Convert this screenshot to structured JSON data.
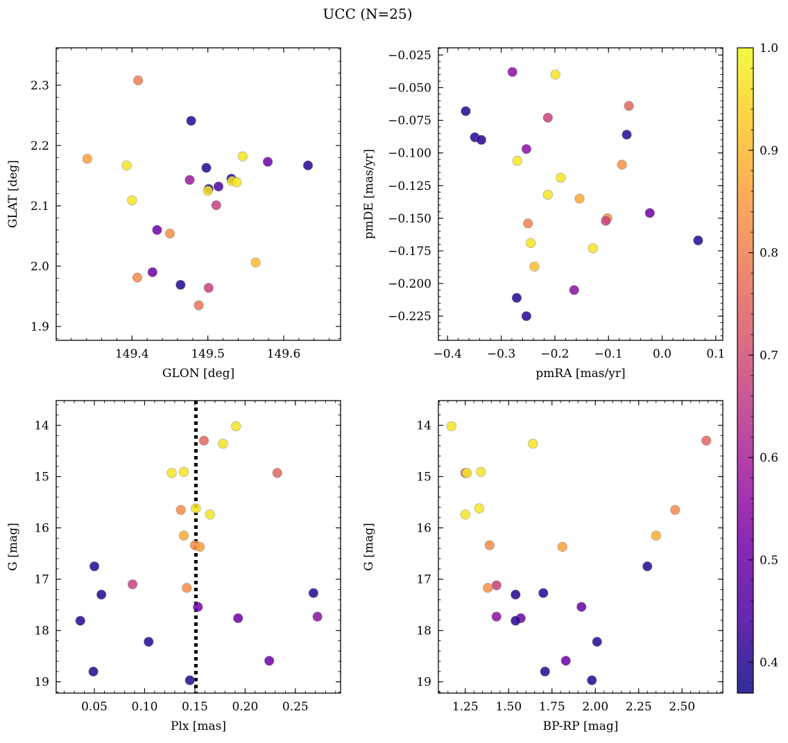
{
  "figure": {
    "title": "UCC (N=25)"
  },
  "colormap": {
    "name": "plasma",
    "alpha": 0.85,
    "min": 0.37,
    "max": 1.0,
    "tick_labels": [
      "0.4",
      "0.5",
      "0.6",
      "0.7",
      "0.8",
      "0.9",
      "1.0"
    ],
    "tick_values": [
      0.4,
      0.5,
      0.6,
      0.7,
      0.8,
      0.9,
      1.0
    ],
    "stops": [
      "#0d0887",
      "#46039f",
      "#7201a8",
      "#9c179e",
      "#bd3786",
      "#d8576b",
      "#ed7953",
      "#fb9f3a",
      "#fdca26",
      "#f0f921"
    ]
  },
  "chart_data": [
    {
      "type": "scatter",
      "name": "GLON vs GLAT",
      "xlabel": "GLON [deg]",
      "ylabel": "GLAT [deg]",
      "xlim": [
        149.3,
        149.675
      ],
      "ylim": [
        1.877,
        2.362
      ],
      "x_ticks": [
        149.4,
        149.5,
        149.6
      ],
      "x_tick_labels": [
        "149.4",
        "149.5",
        "149.6"
      ],
      "y_ticks": [
        1.9,
        2.0,
        2.1,
        2.2,
        2.3
      ],
      "y_tick_labels": [
        "1.9",
        "2.0",
        "2.1",
        "2.2",
        "2.3"
      ],
      "points": [
        {
          "x": 149.408,
          "y": 2.308,
          "c": 0.8
        },
        {
          "x": 149.478,
          "y": 2.241,
          "c": 0.4
        },
        {
          "x": 149.341,
          "y": 2.178,
          "c": 0.86
        },
        {
          "x": 149.393,
          "y": 2.167,
          "c": 0.97
        },
        {
          "x": 149.546,
          "y": 2.182,
          "c": 0.97
        },
        {
          "x": 149.579,
          "y": 2.173,
          "c": 0.5
        },
        {
          "x": 149.632,
          "y": 2.167,
          "c": 0.4
        },
        {
          "x": 149.498,
          "y": 2.163,
          "c": 0.4
        },
        {
          "x": 149.476,
          "y": 2.143,
          "c": 0.58
        },
        {
          "x": 149.531,
          "y": 2.145,
          "c": 0.4
        },
        {
          "x": 149.514,
          "y": 2.132,
          "c": 0.45
        },
        {
          "x": 149.501,
          "y": 2.128,
          "c": 0.4
        },
        {
          "x": 149.5,
          "y": 2.125,
          "c": 0.97
        },
        {
          "x": 149.532,
          "y": 2.141,
          "c": 0.97
        },
        {
          "x": 149.538,
          "y": 2.139,
          "c": 0.97
        },
        {
          "x": 149.4,
          "y": 2.109,
          "c": 0.97
        },
        {
          "x": 149.511,
          "y": 2.101,
          "c": 0.67
        },
        {
          "x": 149.433,
          "y": 2.06,
          "c": 0.5
        },
        {
          "x": 149.45,
          "y": 2.054,
          "c": 0.83
        },
        {
          "x": 149.563,
          "y": 2.006,
          "c": 0.91
        },
        {
          "x": 149.427,
          "y": 1.99,
          "c": 0.5
        },
        {
          "x": 149.407,
          "y": 1.981,
          "c": 0.82
        },
        {
          "x": 149.464,
          "y": 1.969,
          "c": 0.4
        },
        {
          "x": 149.501,
          "y": 1.964,
          "c": 0.67
        },
        {
          "x": 149.488,
          "y": 1.935,
          "c": 0.78
        }
      ]
    },
    {
      "type": "scatter",
      "name": "pmRA vs pmDE",
      "xlabel": "pmRA [mas/yr]",
      "ylabel": "pmDE [mas/yr]",
      "xlim": [
        -0.417,
        0.113
      ],
      "ylim": [
        -0.2435,
        -0.0195
      ],
      "x_ticks": [
        -0.4,
        -0.3,
        -0.2,
        -0.1,
        0.0,
        0.1
      ],
      "x_tick_labels": [
        "−0.4",
        "−0.3",
        "−0.2",
        "−0.1",
        "0.0",
        "0.1"
      ],
      "y_ticks": [
        -0.025,
        -0.05,
        -0.075,
        -0.1,
        -0.125,
        -0.15,
        -0.175,
        -0.2,
        -0.225
      ],
      "y_tick_labels": [
        "−0.025",
        "−0.050",
        "−0.075",
        "−0.100",
        "−0.125",
        "−0.150",
        "−0.175",
        "−0.200",
        "−0.225"
      ],
      "points": [
        {
          "x": -0.279,
          "y": -0.038,
          "c": 0.55
        },
        {
          "x": -0.199,
          "y": -0.04,
          "c": 0.97
        },
        {
          "x": -0.366,
          "y": -0.068,
          "c": 0.4
        },
        {
          "x": -0.062,
          "y": -0.064,
          "c": 0.75
        },
        {
          "x": -0.213,
          "y": -0.073,
          "c": 0.67
        },
        {
          "x": -0.349,
          "y": -0.088,
          "c": 0.4
        },
        {
          "x": -0.337,
          "y": -0.09,
          "c": 0.4
        },
        {
          "x": -0.066,
          "y": -0.086,
          "c": 0.4
        },
        {
          "x": -0.253,
          "y": -0.097,
          "c": 0.55
        },
        {
          "x": -0.27,
          "y": -0.106,
          "c": 0.97
        },
        {
          "x": -0.075,
          "y": -0.109,
          "c": 0.83
        },
        {
          "x": -0.189,
          "y": -0.119,
          "c": 0.97
        },
        {
          "x": -0.213,
          "y": -0.132,
          "c": 0.97
        },
        {
          "x": -0.154,
          "y": -0.135,
          "c": 0.87
        },
        {
          "x": -0.023,
          "y": -0.146,
          "c": 0.5
        },
        {
          "x": -0.102,
          "y": -0.15,
          "c": 0.83
        },
        {
          "x": -0.105,
          "y": -0.152,
          "c": 0.67
        },
        {
          "x": -0.25,
          "y": -0.154,
          "c": 0.8
        },
        {
          "x": -0.245,
          "y": -0.169,
          "c": 0.97
        },
        {
          "x": -0.129,
          "y": -0.173,
          "c": 0.97
        },
        {
          "x": -0.238,
          "y": -0.187,
          "c": 0.91
        },
        {
          "x": 0.067,
          "y": -0.167,
          "c": 0.4
        },
        {
          "x": -0.164,
          "y": -0.205,
          "c": 0.55
        },
        {
          "x": -0.271,
          "y": -0.211,
          "c": 0.4
        },
        {
          "x": -0.253,
          "y": -0.225,
          "c": 0.4
        }
      ]
    },
    {
      "type": "scatter",
      "name": "Plx vs G",
      "xlabel": "Plx [mas]",
      "ylabel": "G [mag]",
      "xlim": [
        0.012,
        0.295
      ],
      "ylim": [
        19.22,
        13.52
      ],
      "y_inverted": true,
      "x_ticks": [
        0.05,
        0.1,
        0.15,
        0.2,
        0.25
      ],
      "x_tick_labels": [
        "0.05",
        "0.10",
        "0.15",
        "0.20",
        "0.25"
      ],
      "y_ticks": [
        14,
        15,
        16,
        17,
        18,
        19
      ],
      "y_tick_labels": [
        "14",
        "15",
        "16",
        "17",
        "18",
        "19"
      ],
      "vline": {
        "x": 0.151,
        "style": "dotted",
        "color": "#000000"
      },
      "points": [
        {
          "x": 0.191,
          "y": 14.02,
          "c": 0.97
        },
        {
          "x": 0.159,
          "y": 14.3,
          "c": 0.75
        },
        {
          "x": 0.178,
          "y": 14.36,
          "c": 0.97
        },
        {
          "x": 0.127,
          "y": 14.93,
          "c": 0.97
        },
        {
          "x": 0.139,
          "y": 14.91,
          "c": 0.97
        },
        {
          "x": 0.232,
          "y": 14.93,
          "c": 0.75
        },
        {
          "x": 0.151,
          "y": 15.62,
          "c": 0.97
        },
        {
          "x": 0.136,
          "y": 15.65,
          "c": 0.82
        },
        {
          "x": 0.165,
          "y": 15.74,
          "c": 0.97
        },
        {
          "x": 0.139,
          "y": 16.15,
          "c": 0.88
        },
        {
          "x": 0.15,
          "y": 16.34,
          "c": 0.82
        },
        {
          "x": 0.155,
          "y": 16.37,
          "c": 0.86
        },
        {
          "x": 0.05,
          "y": 16.75,
          "c": 0.4
        },
        {
          "x": 0.088,
          "y": 17.1,
          "c": 0.67
        },
        {
          "x": 0.142,
          "y": 17.17,
          "c": 0.83
        },
        {
          "x": 0.057,
          "y": 17.3,
          "c": 0.4
        },
        {
          "x": 0.268,
          "y": 17.27,
          "c": 0.4
        },
        {
          "x": 0.153,
          "y": 17.54,
          "c": 0.5
        },
        {
          "x": 0.036,
          "y": 17.81,
          "c": 0.4
        },
        {
          "x": 0.193,
          "y": 17.76,
          "c": 0.5
        },
        {
          "x": 0.272,
          "y": 17.73,
          "c": 0.55
        },
        {
          "x": 0.104,
          "y": 18.22,
          "c": 0.4
        },
        {
          "x": 0.224,
          "y": 18.59,
          "c": 0.5
        },
        {
          "x": 0.049,
          "y": 18.8,
          "c": 0.4
        },
        {
          "x": 0.145,
          "y": 18.97,
          "c": 0.4
        }
      ]
    },
    {
      "type": "scatter",
      "name": "BP-RP vs G",
      "xlabel": "BP-RP [mag]",
      "ylabel": "G [mag]",
      "xlim": [
        1.095,
        2.735
      ],
      "ylim": [
        19.22,
        13.52
      ],
      "y_inverted": true,
      "x_ticks": [
        1.25,
        1.5,
        1.75,
        2.0,
        2.25,
        2.5
      ],
      "x_tick_labels": [
        "1.25",
        "1.50",
        "1.75",
        "2.00",
        "2.25",
        "2.50"
      ],
      "y_ticks": [
        14,
        15,
        16,
        17,
        18,
        19
      ],
      "y_tick_labels": [
        "14",
        "15",
        "16",
        "17",
        "18",
        "19"
      ],
      "points": [
        {
          "x": 1.17,
          "y": 14.02,
          "c": 0.97
        },
        {
          "x": 2.64,
          "y": 14.3,
          "c": 0.75
        },
        {
          "x": 1.64,
          "y": 14.36,
          "c": 0.97
        },
        {
          "x": 1.25,
          "y": 14.93,
          "c": 0.75
        },
        {
          "x": 1.26,
          "y": 14.93,
          "c": 0.97
        },
        {
          "x": 1.34,
          "y": 14.91,
          "c": 0.97
        },
        {
          "x": 1.33,
          "y": 15.62,
          "c": 0.97
        },
        {
          "x": 1.25,
          "y": 15.74,
          "c": 0.97
        },
        {
          "x": 2.46,
          "y": 15.65,
          "c": 0.82
        },
        {
          "x": 2.35,
          "y": 16.15,
          "c": 0.88
        },
        {
          "x": 1.39,
          "y": 16.34,
          "c": 0.82
        },
        {
          "x": 1.81,
          "y": 16.37,
          "c": 0.86
        },
        {
          "x": 2.3,
          "y": 16.75,
          "c": 0.4
        },
        {
          "x": 1.43,
          "y": 17.12,
          "c": 0.67
        },
        {
          "x": 1.38,
          "y": 17.17,
          "c": 0.83
        },
        {
          "x": 1.54,
          "y": 17.3,
          "c": 0.4
        },
        {
          "x": 1.7,
          "y": 17.27,
          "c": 0.4
        },
        {
          "x": 1.92,
          "y": 17.54,
          "c": 0.5
        },
        {
          "x": 1.43,
          "y": 17.73,
          "c": 0.55
        },
        {
          "x": 1.57,
          "y": 17.76,
          "c": 0.5
        },
        {
          "x": 1.54,
          "y": 17.81,
          "c": 0.4
        },
        {
          "x": 2.01,
          "y": 18.22,
          "c": 0.4
        },
        {
          "x": 1.83,
          "y": 18.59,
          "c": 0.5
        },
        {
          "x": 1.71,
          "y": 18.8,
          "c": 0.4
        },
        {
          "x": 1.98,
          "y": 18.97,
          "c": 0.4
        }
      ]
    }
  ]
}
